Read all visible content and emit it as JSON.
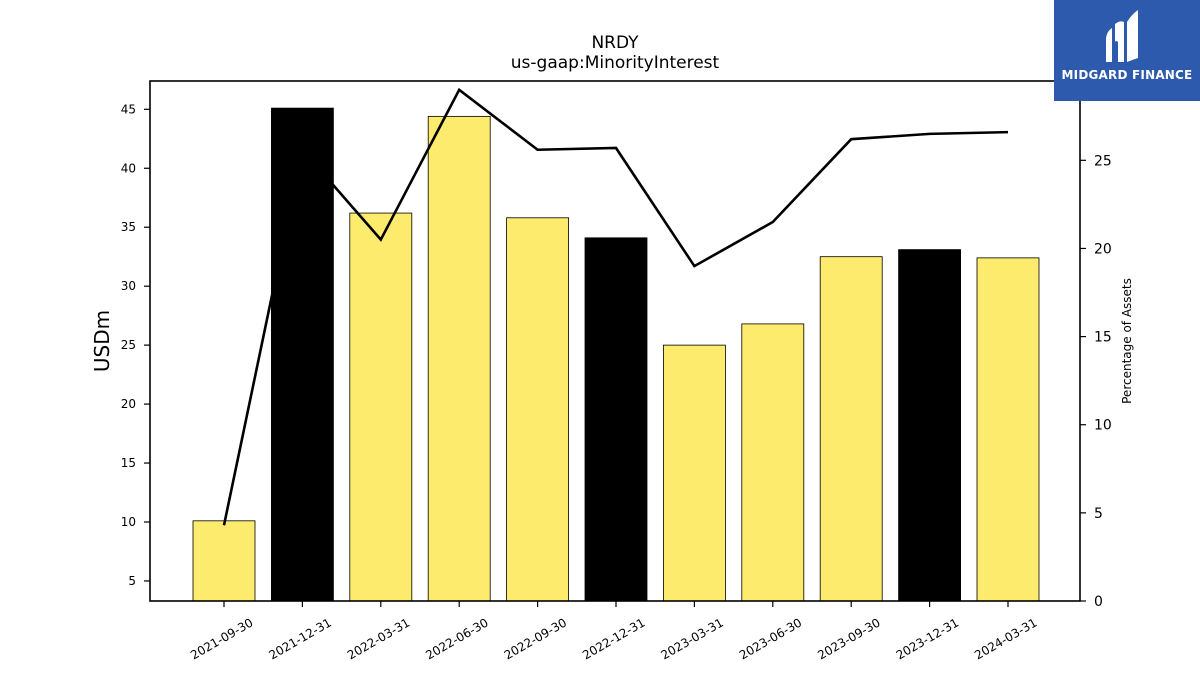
{
  "brand": {
    "name": "MIDGARD FINANCE",
    "logo_color": "#2d5aac"
  },
  "chart_data": {
    "type": "bar",
    "title": "NRDY",
    "subtitle": "us-gaap:MinorityInterest",
    "categories": [
      "2021-09-30",
      "2021-12-31",
      "2022-03-31",
      "2022-06-30",
      "2022-09-30",
      "2022-12-31",
      "2023-03-31",
      "2023-06-30",
      "2023-09-30",
      "2023-12-31",
      "2024-03-31"
    ],
    "ylabel": "USDm",
    "y2label": "Percentage of Assets",
    "ylim": [
      3.3,
      47.4
    ],
    "y2lim": [
      0,
      29.5
    ],
    "yticks": [
      5,
      10,
      15,
      20,
      25,
      30,
      35,
      40,
      45
    ],
    "y2ticks": [
      0,
      5,
      10,
      15,
      20,
      25
    ],
    "series": [
      {
        "type": "bar",
        "values": [
          10.1,
          45.1,
          36.2,
          44.4,
          35.8,
          34.1,
          25.0,
          26.8,
          32.5,
          33.1,
          32.4
        ],
        "colors": [
          "#fdeb6e",
          "#000000",
          "#fdeb6e",
          "#fdeb6e",
          "#fdeb6e",
          "#000000",
          "#fdeb6e",
          "#fdeb6e",
          "#fdeb6e",
          "#000000",
          "#fdeb6e"
        ]
      },
      {
        "type": "line",
        "axis": "right",
        "color": "#000000",
        "values": [
          4.3,
          25.6,
          20.5,
          29.0,
          25.6,
          25.7,
          19.0,
          21.5,
          26.2,
          26.5,
          26.6
        ]
      }
    ],
    "grid": false,
    "legend": "none"
  }
}
